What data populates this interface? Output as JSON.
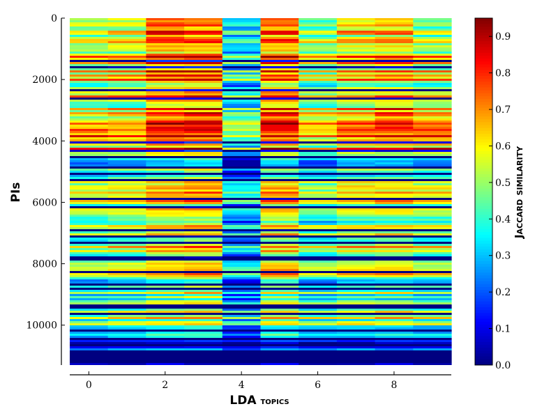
{
  "chart_data": {
    "type": "heatmap",
    "title": "",
    "xlabel_main": "LDA",
    "xlabel_suffix": "topics",
    "ylabel": "PIs",
    "colorbar_label": "Jaccard similarity",
    "x_categories": [
      0,
      1,
      2,
      3,
      4,
      5,
      6,
      7,
      8,
      9
    ],
    "x_ticks": [
      0,
      2,
      4,
      6,
      8
    ],
    "y_range": [
      0,
      11300
    ],
    "y_ticks": [
      0,
      2000,
      4000,
      6000,
      8000,
      10000
    ],
    "y_inverted": true,
    "colormap": "jet",
    "color_range": [
      0.0,
      0.95
    ],
    "colorbar_ticks": [
      0.0,
      0.1,
      0.2,
      0.3,
      0.4,
      0.5,
      0.6,
      0.7,
      0.8,
      0.9
    ],
    "row_bands": [
      {
        "y0": 0,
        "y1": 700,
        "values": [
          0.58,
          0.62,
          0.82,
          0.78,
          0.4,
          0.8,
          0.52,
          0.66,
          0.7,
          0.55
        ]
      },
      {
        "y0": 700,
        "y1": 1600,
        "values": [
          0.6,
          0.64,
          0.75,
          0.76,
          0.4,
          0.74,
          0.58,
          0.65,
          0.68,
          0.6
        ]
      },
      {
        "y0": 1600,
        "y1": 2700,
        "values": [
          0.58,
          0.6,
          0.72,
          0.74,
          0.38,
          0.72,
          0.52,
          0.6,
          0.62,
          0.58
        ]
      },
      {
        "y0": 2700,
        "y1": 3600,
        "values": [
          0.55,
          0.58,
          0.74,
          0.76,
          0.42,
          0.76,
          0.56,
          0.64,
          0.72,
          0.62
        ]
      },
      {
        "y0": 3600,
        "y1": 4400,
        "values": [
          0.68,
          0.66,
          0.76,
          0.78,
          0.45,
          0.75,
          0.58,
          0.7,
          0.7,
          0.72
        ]
      },
      {
        "y0": 4400,
        "y1": 5400,
        "values": [
          0.42,
          0.45,
          0.5,
          0.55,
          0.22,
          0.5,
          0.38,
          0.46,
          0.48,
          0.44
        ]
      },
      {
        "y0": 5400,
        "y1": 6800,
        "values": [
          0.52,
          0.56,
          0.62,
          0.64,
          0.34,
          0.64,
          0.48,
          0.56,
          0.58,
          0.54
        ]
      },
      {
        "y0": 6800,
        "y1": 8000,
        "values": [
          0.48,
          0.52,
          0.6,
          0.62,
          0.32,
          0.6,
          0.46,
          0.54,
          0.56,
          0.5
        ]
      },
      {
        "y0": 8000,
        "y1": 9200,
        "values": [
          0.44,
          0.48,
          0.56,
          0.58,
          0.3,
          0.58,
          0.44,
          0.5,
          0.52,
          0.46
        ]
      },
      {
        "y0": 9200,
        "y1": 10400,
        "values": [
          0.46,
          0.5,
          0.54,
          0.56,
          0.34,
          0.56,
          0.46,
          0.5,
          0.52,
          0.48
        ]
      },
      {
        "y0": 10400,
        "y1": 11300,
        "values": [
          0.12,
          0.12,
          0.14,
          0.14,
          0.08,
          0.14,
          0.12,
          0.13,
          0.13,
          0.12
        ]
      }
    ]
  }
}
